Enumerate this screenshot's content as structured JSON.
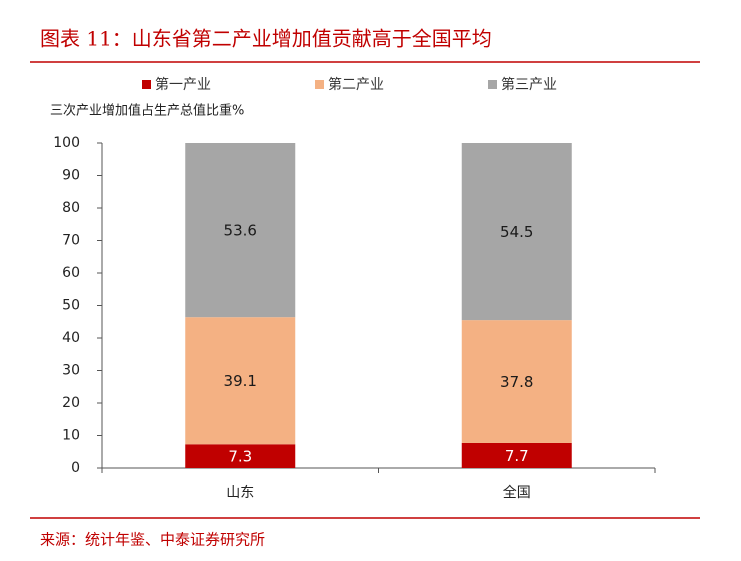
{
  "chart_data": {
    "type": "stacked_bar",
    "title": "图表 11：山东省第二产业增加值贡献高于全国平均",
    "y_label": "三次产业增加值占生产总值比重%",
    "source": "来源：统计年鉴、中泰证券研究所",
    "categories": [
      "山东",
      "全国"
    ],
    "series": [
      {
        "name": "第一产业",
        "color": "#c00000",
        "label_color": "#ffffff",
        "values": [
          7.3,
          7.7
        ]
      },
      {
        "name": "第二产业",
        "color": "#f4b183",
        "label_color": "#1a1a1a",
        "values": [
          39.1,
          37.8
        ]
      },
      {
        "name": "第三产业",
        "color": "#a6a6a6",
        "label_color": "#1a1a1a",
        "values": [
          53.6,
          54.5
        ]
      }
    ],
    "ylim": [
      0,
      100
    ],
    "yticks": [
      0,
      10,
      20,
      30,
      40,
      50,
      60,
      70,
      80,
      90,
      100
    ]
  }
}
